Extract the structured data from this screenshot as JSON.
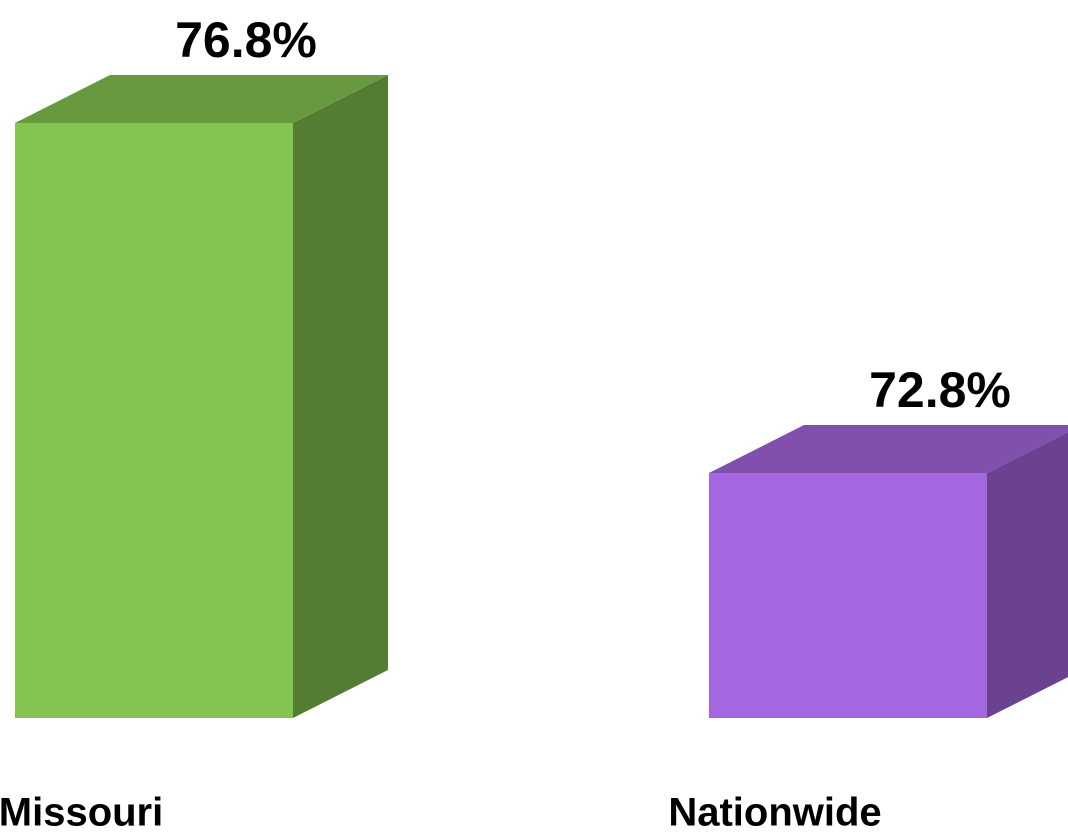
{
  "chart_data": {
    "type": "bar3d",
    "categories": [
      "Missouri",
      "Nationwide"
    ],
    "values": [
      76.8,
      72.8
    ],
    "value_labels": [
      "76.8%",
      "72.8%"
    ],
    "colors": [
      "#84c450",
      "#a567e0"
    ],
    "ylim": [
      70,
      78
    ]
  }
}
